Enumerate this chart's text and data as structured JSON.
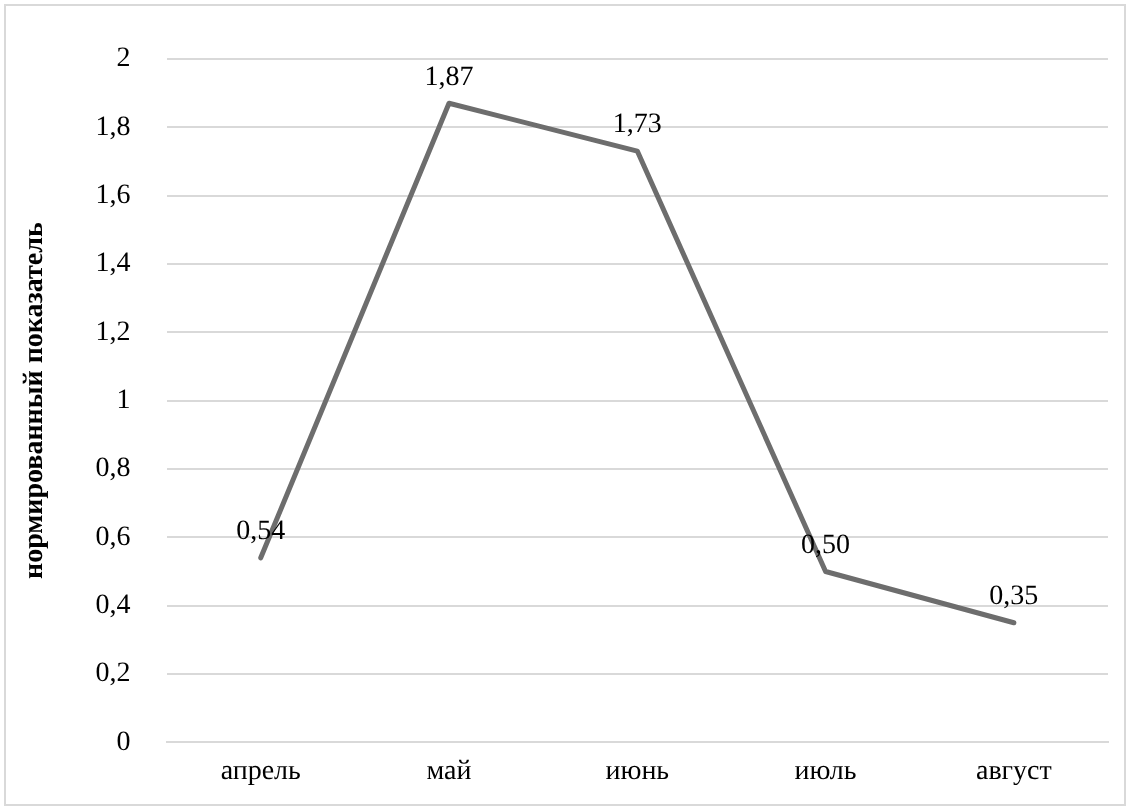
{
  "chart_data": {
    "type": "line",
    "ylabel": "нормированный показатель",
    "categories": [
      "апрель",
      "май",
      "июнь",
      "июль",
      "август"
    ],
    "series": [
      {
        "color": "#6d6d6d",
        "values": [
          0.54,
          1.87,
          1.73,
          0.5,
          0.35
        ],
        "value_labels": [
          "0,54",
          "1,87",
          "1,73",
          "0,50",
          "0,35"
        ]
      }
    ],
    "ylim": [
      0,
      2
    ],
    "yticks": [
      0,
      {
        "value": 0.2,
        "label": "0,2"
      },
      {
        "value": 0.4,
        "label": "0,4"
      },
      {
        "value": 0.6,
        "label": "0,6"
      },
      {
        "value": 0.8,
        "label": "0,8"
      },
      1,
      {
        "value": 1.2,
        "label": "1,2"
      },
      {
        "value": 1.4,
        "label": "1,4"
      },
      {
        "value": 1.6,
        "label": "1,6"
      },
      {
        "value": 1.8,
        "label": "1,8"
      },
      2
    ],
    "grid": "y",
    "legend": false,
    "marker": "none",
    "line_style": "solid"
  }
}
